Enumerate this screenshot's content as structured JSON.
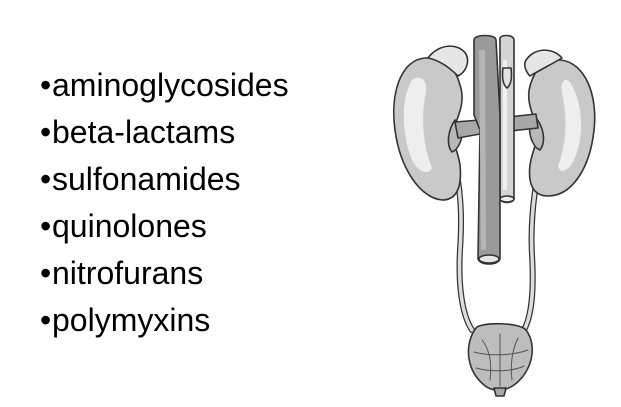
{
  "bullet_symbol": "•",
  "drug_classes": [
    "aminoglycosides",
    "beta-lactams",
    "sulfonamides",
    "quinolones",
    "nitrofurans",
    "polymyxins"
  ],
  "illustration": {
    "icon": "urinary-system-icon",
    "colors": {
      "organ_fill": "#c9c9c9",
      "organ_highlight": "#eeeeee",
      "vessel_fill": "#9a9a9a",
      "outline": "#333333"
    }
  }
}
